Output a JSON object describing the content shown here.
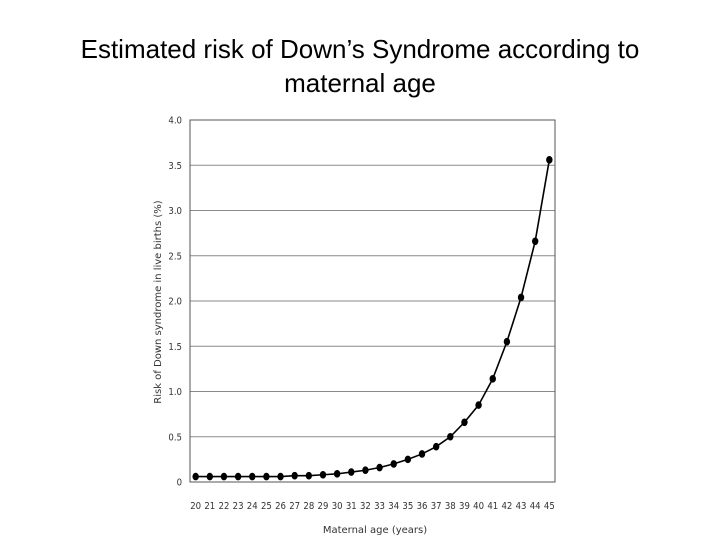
{
  "slide": {
    "title_line1": "Estimated risk of Down’s Syndrome according to",
    "title_line2": "maternal age"
  },
  "chart_data": {
    "type": "line",
    "title": "Estimated risk of Down’s Syndrome according to maternal age",
    "xlabel": "Maternal age (years)",
    "ylabel": "Risk of Down syndrome in live births (%)",
    "xlim": [
      20,
      45
    ],
    "ylim": [
      0,
      4.0
    ],
    "yticks": [
      "0",
      "0.5",
      "1.0",
      "1.5",
      "2.0",
      "2.5",
      "3.0",
      "3.5",
      "4.0"
    ],
    "grid": true,
    "legend": "none",
    "colors": {
      "line": "#000000",
      "grid": "#8a8a8a",
      "frame": "#555555"
    },
    "x": [
      20,
      21,
      22,
      23,
      24,
      25,
      26,
      27,
      28,
      29,
      30,
      31,
      32,
      33,
      34,
      35,
      36,
      37,
      38,
      39,
      40,
      41,
      42,
      43,
      44,
      45
    ],
    "series": [
      {
        "values": [
          0.06,
          0.06,
          0.06,
          0.06,
          0.06,
          0.06,
          0.06,
          0.07,
          0.07,
          0.08,
          0.09,
          0.11,
          0.13,
          0.16,
          0.2,
          0.25,
          0.31,
          0.39,
          0.5,
          0.66,
          0.85,
          1.14,
          1.55,
          2.04,
          2.66,
          3.56
        ]
      }
    ]
  }
}
